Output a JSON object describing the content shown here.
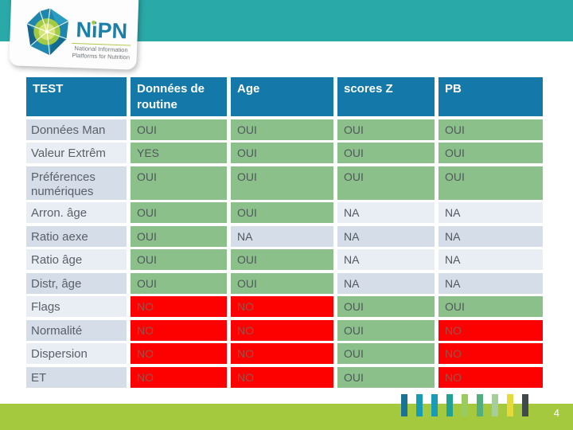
{
  "logo": {
    "brand": "NiPN",
    "tagline_line1": "National Information",
    "tagline_line2": "Platforms for Nutrition"
  },
  "table": {
    "columns": [
      "TEST",
      "Données de routine",
      "Age",
      "scores Z",
      "PB"
    ],
    "rows": [
      {
        "label": "Données Man",
        "values": [
          "OUI",
          "OUI",
          "OUI",
          "OUI"
        ]
      },
      {
        "label": "Valeur Extrêm",
        "values": [
          "YES",
          "OUI",
          "OUI",
          "OUI"
        ]
      },
      {
        "label": "Préférences numériques",
        "values": [
          "OUI",
          "OUI",
          "OUI",
          "OUI"
        ]
      },
      {
        "label": "Arron. âge",
        "values": [
          "OUI",
          "OUI",
          "NA",
          "NA"
        ]
      },
      {
        "label": "Ratio aexe",
        "values": [
          "OUI",
          "NA",
          "NA",
          "NA"
        ]
      },
      {
        "label": "Ratio âge",
        "values": [
          "OUI",
          "OUI",
          "NA",
          "NA"
        ]
      },
      {
        "label": "Distr, âge",
        "values": [
          "OUI",
          "OUI",
          "NA",
          "NA"
        ]
      },
      {
        "label": "Flags",
        "values": [
          "NO",
          "NO",
          "OUI",
          "OUI"
        ]
      },
      {
        "label": "Normalité",
        "values": [
          "NO",
          "NO",
          "OUI",
          "NO"
        ]
      },
      {
        "label": "Dispersion",
        "values": [
          "NO",
          "NO",
          "OUI",
          "NO"
        ]
      },
      {
        "label": "ET",
        "values": [
          "NO",
          "NO",
          "OUI",
          "NO"
        ]
      }
    ]
  },
  "footer": {
    "page_number": "4",
    "deco_bar_colors": [
      "#1a7396",
      "#189cb5",
      "#189cb5",
      "#21a095",
      "#9acb5f",
      "#52ae7e",
      "#a6ce9b",
      "#e5da3c",
      "#41494b"
    ]
  },
  "colors": {
    "top_band_teal": "#2aa9a9",
    "header_blue": "#1478a8",
    "cell_green": "#8cc08a",
    "cell_red": "#fd0000",
    "row_band_dark": "#d5dde9",
    "row_band_light": "#e9eef5",
    "footer_green": "#a4c93e"
  }
}
